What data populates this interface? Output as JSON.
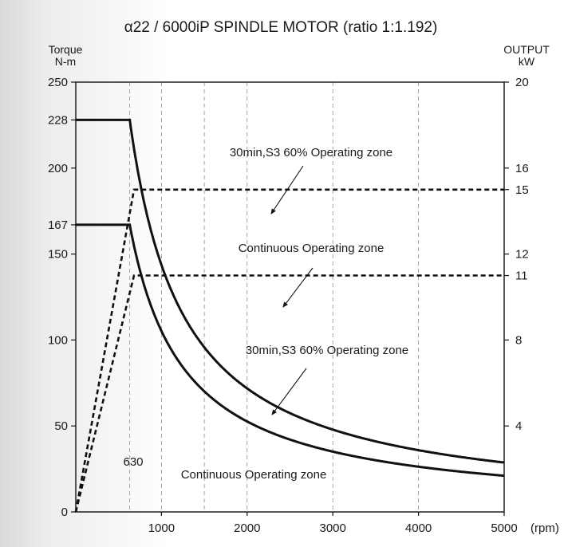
{
  "chart_data": {
    "type": "line",
    "title": "α22 / 6000iP SPINDLE MOTOR (ratio 1:1.192)",
    "y_left_label_line1": "Torque",
    "y_left_label_line2": "N-m",
    "y_right_label_line1": "OUTPUT",
    "y_right_label_line2": "kW",
    "x_unit_label": "(rpm)",
    "xlim": [
      0,
      5000
    ],
    "ylim_left": [
      0,
      250
    ],
    "ylim_right": [
      0,
      20
    ],
    "x_ticks": [
      1000,
      2000,
      3000,
      4000,
      5000
    ],
    "x_tick_labels": [
      "1000",
      "2000",
      "3000",
      "4000",
      "5000"
    ],
    "left_ticks": [
      0,
      50,
      100,
      150,
      167,
      200,
      228,
      250
    ],
    "left_tick_labels": [
      "0",
      "50",
      "100",
      "150",
      "167",
      "200",
      "228",
      "250"
    ],
    "right_ticks": [
      4,
      8,
      11,
      12,
      15,
      16,
      20
    ],
    "right_tick_labels": [
      "4",
      "8",
      "11",
      "12",
      "15",
      "16",
      "20"
    ],
    "base_speed_label": "630",
    "base_speed": 630,
    "grid": "vertical dashed at 630, 1000, 1500, 2000, 3000, 4000",
    "series": [
      {
        "style": "solid",
        "axis": "left",
        "corner_rpm": 630,
        "x": [
          0,
          630,
          700,
          800,
          1000,
          1500,
          2000,
          3000,
          4000,
          5000
        ],
        "y": [
          228,
          228,
          195,
          171,
          137,
          91,
          68,
          46,
          34,
          27
        ]
      },
      {
        "style": "solid",
        "axis": "left",
        "corner_rpm": 630,
        "x": [
          0,
          630,
          700,
          800,
          1000,
          1500,
          2000,
          3000,
          4000,
          5000
        ],
        "y": [
          167,
          167,
          143,
          125,
          100,
          67,
          50,
          33,
          25,
          20
        ]
      },
      {
        "style": "dashed",
        "axis": "right",
        "x": [
          0,
          680,
          5000
        ],
        "y": [
          0,
          15,
          15
        ]
      },
      {
        "style": "dashed",
        "axis": "right",
        "x": [
          0,
          680,
          5000
        ],
        "y": [
          0,
          11,
          11
        ]
      }
    ],
    "annotations": [
      {
        "text": "30min,S3 60% Operating zone",
        "arrow_to": "upper output band"
      },
      {
        "text": "Continuous Operating zone",
        "arrow_to": "lower output band"
      },
      {
        "text": "30min,S3 60% Operating zone",
        "arrow_to": "upper torque curve"
      },
      {
        "text": "Continuous Operating zone",
        "arrow_to": "none"
      }
    ]
  },
  "colors": {
    "line": "#111111",
    "grid": "#8c8c8c",
    "axis": "#111111"
  }
}
